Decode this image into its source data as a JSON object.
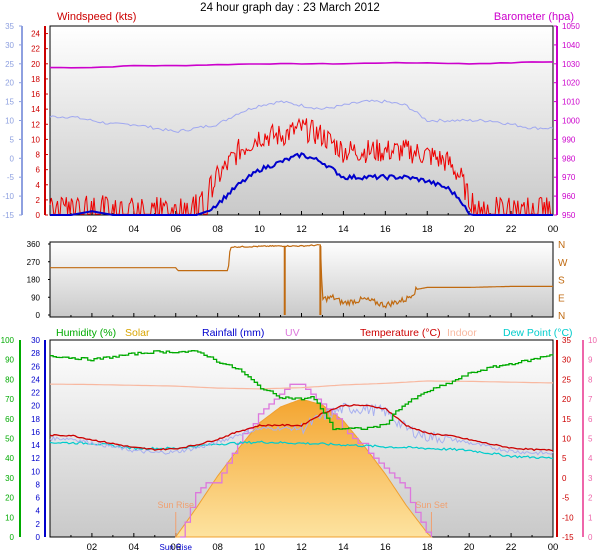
{
  "title": "24 hour graph day : 23 March 2012",
  "time_ticks": [
    "02",
    "04",
    "06",
    "08",
    "10",
    "12",
    "14",
    "16",
    "18",
    "20",
    "22",
    "00"
  ],
  "chart_data": [
    {
      "type": "line",
      "panel": "wind-barometer",
      "left_label": "Windspeed (kts)",
      "right_label": "Barometer (hpa)",
      "outer_left_ticks": [
        35,
        30,
        25,
        20,
        15,
        10,
        5,
        0,
        -5,
        -10,
        -15
      ],
      "left_ticks": [
        24,
        22,
        20,
        18,
        16,
        14,
        12,
        10,
        8,
        6,
        4,
        2,
        0
      ],
      "right_ticks": [
        1050,
        1040,
        1030,
        1020,
        1010,
        1000,
        990,
        980,
        970,
        960,
        950
      ],
      "left_range": [
        0,
        25
      ],
      "right_range": [
        950,
        1050
      ],
      "outer_range": [
        -15,
        35
      ],
      "x_range_hours": [
        0,
        24
      ],
      "series": [
        {
          "name": "Barometer",
          "axis": "right",
          "color": "#cc00cc",
          "x": [
            0,
            2,
            4,
            6,
            8,
            10,
            12,
            14,
            16,
            18,
            20,
            22,
            23,
            24
          ],
          "y": [
            1028,
            1028,
            1029,
            1029,
            1029.5,
            1030,
            1030,
            1030,
            1030.5,
            1030.5,
            1030,
            1030.5,
            1031,
            1031
          ]
        },
        {
          "name": "Temperature (light)",
          "axis": "outer",
          "color": "#a0a8f0",
          "x": [
            0,
            1,
            2,
            3,
            4,
            5,
            6,
            7,
            8,
            9,
            10,
            11,
            12,
            13,
            14,
            15,
            16,
            17,
            17.5,
            18,
            19,
            20,
            21,
            22,
            23,
            24
          ],
          "y": [
            11,
            11,
            10,
            9,
            9,
            8,
            7,
            8,
            9,
            12,
            14,
            15,
            14,
            13,
            14,
            15,
            15,
            14,
            12,
            10,
            10,
            10,
            10,
            9,
            8,
            8
          ]
        },
        {
          "name": "Wind avg",
          "axis": "left",
          "color": "#0000cc",
          "x": [
            0,
            1,
            2,
            3,
            4,
            5,
            6,
            7,
            7.5,
            8,
            9,
            10,
            11,
            12,
            13,
            14,
            15,
            16,
            17,
            18,
            19,
            19.6,
            20,
            21,
            22,
            23,
            24
          ],
          "y": [
            0,
            0,
            0.5,
            0,
            0,
            0,
            0,
            0,
            0.5,
            1.5,
            4,
            6,
            7,
            8,
            7,
            5,
            5,
            5,
            5,
            4.5,
            3.5,
            2,
            0,
            0,
            0,
            0,
            0
          ]
        },
        {
          "name": "Wind gust",
          "axis": "left",
          "color": "#ee0000",
          "x": [
            0,
            1,
            2,
            3,
            4,
            5,
            6,
            7,
            7.5,
            8,
            9,
            10,
            11,
            12,
            13,
            14,
            15,
            16,
            17,
            18,
            19,
            19.6,
            20,
            21,
            22,
            23,
            24
          ],
          "y": [
            1.5,
            1.5,
            2,
            1.5,
            1.5,
            1.5,
            1.5,
            2,
            2.5,
            4.5,
            8,
            10,
            10,
            11,
            10,
            8,
            8,
            8,
            8,
            7.5,
            6.5,
            4.5,
            1.5,
            1.5,
            1.5,
            1.5,
            1.5
          ]
        }
      ]
    },
    {
      "type": "line",
      "panel": "wind-direction",
      "left_ticks": [
        360,
        270,
        180,
        90,
        0
      ],
      "right_ticks": [
        "N",
        "W",
        "S",
        "E",
        "N"
      ],
      "y_range": [
        0,
        360
      ],
      "x_range_hours": [
        0,
        24
      ],
      "series": [
        {
          "name": "Wind direction",
          "color": "#c06a10",
          "x": [
            0,
            0.5,
            1,
            6,
            6.1,
            8.5,
            8.6,
            11,
            11.5,
            12,
            12.9,
            13,
            13.5,
            14,
            15,
            16,
            17,
            17.5,
            18,
            20,
            22,
            24
          ],
          "y": [
            240,
            240,
            240,
            240,
            225,
            225,
            345,
            350,
            350,
            350,
            355,
            80,
            90,
            60,
            80,
            50,
            80,
            130,
            140,
            140,
            145,
            145
          ]
        }
      ]
    },
    {
      "type": "line",
      "panel": "temperature-humidity",
      "legend": [
        "Humidity (%)",
        "Solar",
        "Rainfall (mm)",
        "UV",
        "Temperature (°C)",
        "Indoor",
        "Dew Point (°C)"
      ],
      "humidity_ticks": [
        100,
        90,
        80,
        70,
        60,
        50,
        40,
        30,
        20,
        10,
        0
      ],
      "rain_ticks": [
        30,
        28,
        26,
        24,
        22,
        20,
        18,
        16,
        14,
        12,
        10,
        8,
        6,
        4,
        2,
        0
      ],
      "temp_ticks": [
        35,
        30,
        25,
        20,
        15,
        10,
        5,
        0,
        -5,
        -10,
        -15
      ],
      "uv_ticks": [
        10,
        9,
        8,
        7,
        6,
        5,
        4,
        3,
        2,
        1,
        0
      ],
      "humidity_range": [
        0,
        100
      ],
      "temp_range": [
        -15,
        35
      ],
      "x_range_hours": [
        0,
        24
      ],
      "x_tick_extra": "Sun Rise",
      "annotations": {
        "sunrise": "Sun Rise",
        "sunset": "Sun Set",
        "sunrise_hour": 6.0,
        "sunset_hour": 18.2
      },
      "series": [
        {
          "name": "Humidity",
          "color": "#00aa00",
          "x": [
            0,
            2,
            4,
            5,
            6,
            7,
            7.3,
            8,
            9,
            10,
            11,
            12,
            12.5,
            13,
            13.5,
            14,
            15,
            16,
            16.5,
            17,
            18,
            19,
            20,
            21,
            22,
            23,
            24
          ],
          "y": [
            92,
            90,
            93,
            94,
            94,
            94,
            93,
            89,
            85,
            76,
            71,
            70,
            71,
            64,
            55,
            55,
            55,
            57,
            64,
            68,
            74,
            78,
            83,
            86,
            88,
            90,
            93
          ]
        },
        {
          "name": "Temperature",
          "color": "#cc0000",
          "x": [
            0,
            1,
            2,
            3,
            4,
            5,
            6,
            7,
            8,
            9,
            10,
            11,
            12,
            13,
            14,
            15,
            16,
            17,
            18,
            19,
            20,
            21,
            22,
            23,
            24
          ],
          "y": [
            10.8,
            10.8,
            9.7,
            8.7,
            7.7,
            7.2,
            7.4,
            8.4,
            9.8,
            11.8,
            13.3,
            13.4,
            13.3,
            16.4,
            18.4,
            18.4,
            17.6,
            13.3,
            11.3,
            10.8,
            9.7,
            8.6,
            7.6,
            7.2,
            7.0
          ]
        },
        {
          "name": "Indoor",
          "color": "#f8b8a0",
          "x": [
            0,
            2,
            4,
            6,
            8,
            10,
            12,
            14,
            16,
            18,
            20,
            22,
            24
          ],
          "y": [
            23.8,
            23.7,
            23.5,
            23.3,
            22.8,
            22.6,
            22.9,
            23.6,
            24.0,
            24.6,
            24.5,
            24.3,
            24.1
          ]
        },
        {
          "name": "Dew Point",
          "color": "#00cccc",
          "x": [
            0,
            2,
            4,
            6,
            8,
            10,
            12,
            14,
            16,
            18,
            20,
            22,
            24
          ],
          "y": [
            9.0,
            8.8,
            7.5,
            7.5,
            8.6,
            9.1,
            8.8,
            8.4,
            7.9,
            7.5,
            7.0,
            5.5,
            5.0
          ]
        },
        {
          "name": "UV",
          "color": "#dd77dd",
          "x": [
            6.2,
            7,
            8,
            9,
            10,
            11,
            11.3,
            12,
            13,
            14,
            15,
            16,
            17,
            17.5,
            18.2
          ],
          "y": [
            0,
            2.5,
            2.8,
            4.9,
            6.2,
            7.4,
            7.7,
            7.7,
            6.8,
            5.5,
            4.6,
            3.4,
            2.4,
            1.0,
            0
          ]
        },
        {
          "name": "Solar",
          "color": "#f4b23c",
          "x": [
            6.0,
            7,
            8,
            9,
            10,
            11,
            12,
            13,
            14,
            15,
            16,
            17,
            18,
            18.2
          ],
          "y": [
            0,
            15,
            31,
            45,
            58,
            66,
            70,
            67,
            59,
            46,
            32,
            16,
            2,
            0
          ]
        }
      ]
    }
  ]
}
